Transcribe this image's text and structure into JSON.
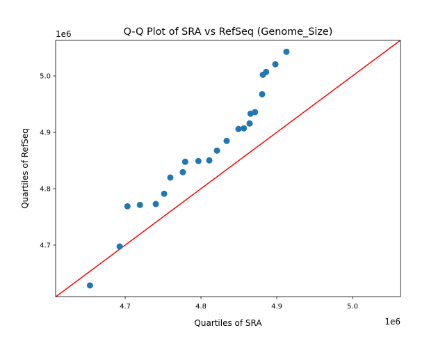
{
  "chart_data": {
    "type": "scatter",
    "title": "Q-Q Plot of SRA vs RefSeq (Genome_Size)",
    "xlabel": "Quartiles of SRA",
    "ylabel": "Quartiles of RefSeq",
    "x_offset_text": "1e6",
    "y_offset_text": "1e6",
    "xlim": [
      4.6082,
      5.0633
    ],
    "ylim": [
      4.6086,
      5.063
    ],
    "x_ticks": [
      4.7,
      4.8,
      4.9,
      5.0
    ],
    "x_tick_labels": [
      "4.7",
      "4.8",
      "4.9",
      "5.0"
    ],
    "y_ticks": [
      4.7,
      4.8,
      4.9,
      5.0
    ],
    "y_tick_labels": [
      "4.7",
      "4.8",
      "4.9",
      "5.0"
    ],
    "grid": false,
    "reference_line": {
      "type": "y=x",
      "color": "#ff0000"
    },
    "marker_color": "#1f77b4",
    "points": [
      [
        4.6535,
        4.6284
      ],
      [
        4.6927,
        4.6975
      ],
      [
        4.703,
        4.7688
      ],
      [
        4.7195,
        4.7712
      ],
      [
        4.7404,
        4.7728
      ],
      [
        4.7514,
        4.791
      ],
      [
        4.7596,
        4.8198
      ],
      [
        4.7761,
        4.8293
      ],
      [
        4.7792,
        4.8478
      ],
      [
        4.7966,
        4.849
      ],
      [
        4.811,
        4.8502
      ],
      [
        4.8211,
        4.8675
      ],
      [
        4.8339,
        4.8848
      ],
      [
        4.8495,
        4.9058
      ],
      [
        4.8566,
        4.907
      ],
      [
        4.8642,
        4.9157
      ],
      [
        4.8654,
        4.933
      ],
      [
        4.8713,
        4.9358
      ],
      [
        4.8807,
        4.9675
      ],
      [
        4.8817,
        5.0021
      ],
      [
        4.886,
        5.007
      ],
      [
        4.8982,
        5.0206
      ],
      [
        4.9128,
        5.0428
      ]
    ]
  }
}
